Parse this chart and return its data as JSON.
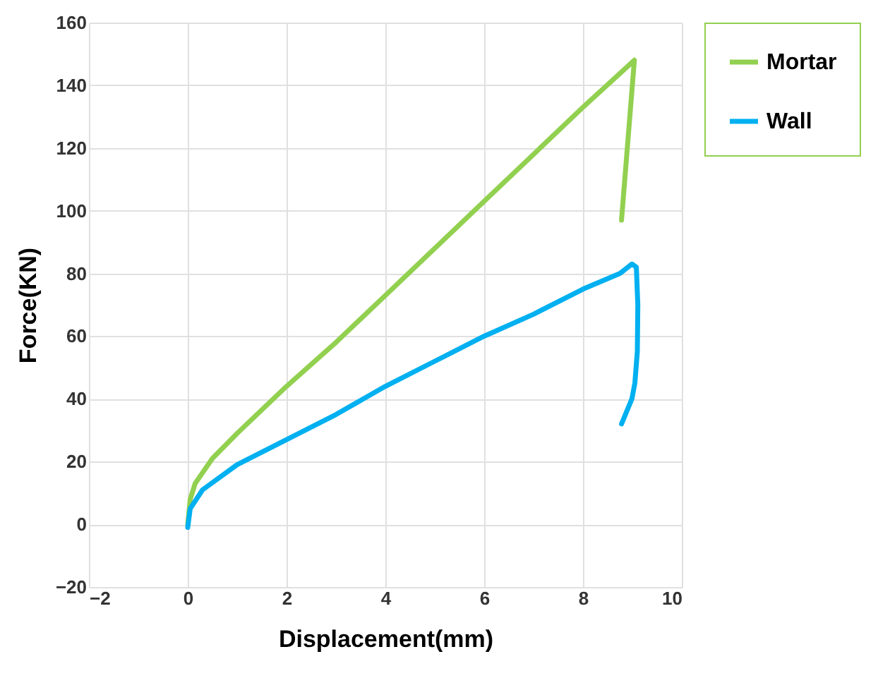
{
  "chart_data": {
    "type": "line",
    "xlabel": "Displacement(mm)",
    "ylabel": "Force(KN)",
    "xlim": [
      -2,
      10
    ],
    "ylim": [
      -20,
      160
    ],
    "xticks": [
      -2,
      0,
      2,
      4,
      6,
      8,
      10
    ],
    "yticks": [
      -20,
      0,
      20,
      40,
      60,
      80,
      100,
      120,
      140,
      160
    ],
    "grid": true,
    "legend": "right",
    "line_style": "solid",
    "marker": "none",
    "series": [
      {
        "name": "Mortar",
        "color": "#92d050",
        "x": [
          0,
          0.05,
          0.15,
          0.5,
          1,
          2,
          3,
          4,
          5,
          6,
          7,
          8,
          9.04,
          8.78
        ],
        "values": [
          0,
          8,
          13,
          21,
          29,
          44,
          58,
          73,
          88,
          103,
          118,
          133,
          148,
          97
        ]
      },
      {
        "name": "Wall",
        "color": "#00b0f0",
        "x": [
          0,
          0.05,
          0.3,
          1,
          2,
          3,
          4,
          5,
          6,
          7,
          8,
          8.75,
          8.99,
          9.08,
          9.11,
          9.1,
          9.05,
          8.99,
          8.78
        ],
        "values": [
          -1,
          5,
          11,
          19,
          27,
          35,
          44,
          52,
          60,
          67,
          75,
          80,
          83,
          82,
          70,
          55,
          45,
          40,
          32
        ]
      }
    ]
  }
}
